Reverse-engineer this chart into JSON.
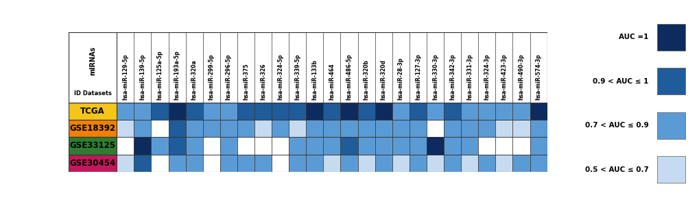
{
  "mirnas": [
    "hsa-miR-129-5p",
    "hsa-miR-139-5p",
    "hsa-miR-125a-5p",
    "hsa-miR-193a-5p",
    "hsa-miR-320a",
    "hsa-miR-299-5p",
    "hsa-miR-296-5p",
    "hsa-miR-375",
    "hsa-miR-326",
    "hsa-miR-324-5p",
    "hsa-miR-339-5p",
    "hsa-miR-133b",
    "hsa-miR-464",
    "hsa-miR-486-5p",
    "hsa-miR-320b",
    "hsa-miR-320d",
    "hsa-miR-28-3p",
    "hsa-miR-127-3p",
    "hsa-miR-330-3p",
    "hsa-miR-342-3p",
    "hsa-miR-331-3p",
    "hsa-miR-324-3p",
    "hsa-miR-423-3p",
    "hsa-miR-490-3p",
    "hsa-miR-574-3p"
  ],
  "datasets": [
    "TCGA",
    "GSE18392",
    "GSE33125",
    "GSE30454"
  ],
  "dataset_colors": [
    "#F5C518",
    "#F08000",
    "#2E7D32",
    "#C2185B"
  ],
  "auc_data": [
    [
      2,
      2,
      3,
      4,
      3,
      2,
      2,
      3,
      3,
      3,
      3,
      4,
      3,
      4,
      3,
      4,
      2,
      3,
      2,
      3,
      2,
      2,
      2,
      2,
      4
    ],
    [
      1,
      2,
      0,
      3,
      2,
      2,
      2,
      2,
      1,
      2,
      1,
      2,
      2,
      2,
      2,
      2,
      2,
      2,
      0,
      2,
      2,
      2,
      1,
      1,
      2
    ],
    [
      0,
      4,
      2,
      3,
      2,
      0,
      2,
      0,
      0,
      0,
      2,
      2,
      2,
      3,
      2,
      2,
      2,
      2,
      4,
      2,
      2,
      0,
      0,
      0,
      2
    ],
    [
      1,
      3,
      0,
      2,
      2,
      0,
      2,
      2,
      2,
      0,
      2,
      2,
      1,
      2,
      1,
      2,
      1,
      2,
      1,
      2,
      1,
      2,
      1,
      2,
      2
    ]
  ],
  "auc_colors": [
    "#FFFFFF",
    "#C6DBF0",
    "#5B9BD5",
    "#1F5C99",
    "#0D2B5E"
  ],
  "legend_labels": [
    "AUC =1",
    "0.9 < AUC ≤ 1",
    "0.7 < AUC ≤ 0.9",
    "0.5 < AUC ≤ 0.7"
  ],
  "legend_colors": [
    "#0D2B5E",
    "#1F5C99",
    "#5B9BD5",
    "#C6DBF0"
  ],
  "header_label": "mIRNAs",
  "row_header": "ID Datasets"
}
